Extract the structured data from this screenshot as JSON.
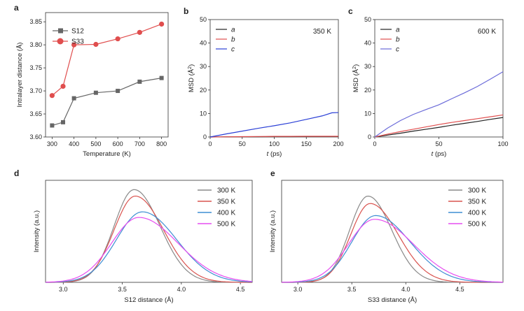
{
  "panel_labels": [
    "a",
    "b",
    "c",
    "d",
    "e"
  ],
  "chart_data": [
    {
      "panel": "a",
      "type": "line",
      "xlabel": "Temperature (K)",
      "ylabel": "Intralayer distance (Å)",
      "xlim": [
        270,
        830
      ],
      "ylim": [
        3.6,
        3.87
      ],
      "xticks": [
        300,
        400,
        500,
        600,
        700,
        800
      ],
      "yticks": [
        3.6,
        3.65,
        3.7,
        3.75,
        3.8,
        3.85
      ],
      "yticklabels": [
        "3.60",
        "3.65",
        "3.70",
        "3.75",
        "3.80",
        "3.85"
      ],
      "legend_position": "top-left",
      "x": [
        300,
        350,
        400,
        500,
        600,
        700,
        800
      ],
      "series": [
        {
          "name": "S12",
          "color": "#666666",
          "marker": "square",
          "values": [
            3.625,
            3.632,
            3.684,
            3.696,
            3.7,
            3.72,
            3.728
          ]
        },
        {
          "name": "S33",
          "color": "#e04e4e",
          "marker": "circle",
          "values": [
            3.69,
            3.71,
            3.8,
            3.801,
            3.813,
            3.827,
            3.845
          ]
        }
      ]
    },
    {
      "panel": "b",
      "type": "line",
      "xlabel": "t (ps)",
      "ylabel": "MSD (Å²)",
      "xlim": [
        0,
        200
      ],
      "ylim": [
        0,
        50
      ],
      "xticks": [
        0,
        50,
        100,
        150,
        200
      ],
      "yticks": [
        0,
        10,
        20,
        30,
        40,
        50
      ],
      "annotation": "350 K",
      "legend_position": "top-left",
      "x": [
        0,
        25,
        50,
        75,
        100,
        125,
        150,
        175,
        190,
        200
      ],
      "series": [
        {
          "name": "a",
          "color": "#222222",
          "values": [
            0,
            0.05,
            0.1,
            0.1,
            0.15,
            0.15,
            0.2,
            0.2,
            0.2,
            0.2
          ]
        },
        {
          "name": "b",
          "color": "#e04e4e",
          "values": [
            0,
            0.1,
            0.15,
            0.2,
            0.25,
            0.25,
            0.3,
            0.3,
            0.3,
            0.3
          ]
        },
        {
          "name": "c",
          "color": "#2a3fd6",
          "values": [
            0,
            1.3,
            2.5,
            3.7,
            4.8,
            6.0,
            7.5,
            9.0,
            10.3,
            10.4
          ]
        }
      ]
    },
    {
      "panel": "c",
      "type": "line",
      "xlabel": "t (ps)",
      "ylabel": "MSD (Å²)",
      "xlim": [
        0,
        100
      ],
      "ylim": [
        0,
        50
      ],
      "xticks": [
        0,
        50,
        100
      ],
      "yticks": [
        0,
        10,
        20,
        30,
        40,
        50
      ],
      "annotation": "600 K",
      "legend_position": "top-left",
      "x": [
        0,
        10,
        20,
        30,
        40,
        50,
        60,
        70,
        80,
        90,
        100
      ],
      "series": [
        {
          "name": "a",
          "color": "#222222",
          "values": [
            0,
            0.8,
            1.6,
            2.5,
            3.3,
            4.1,
            5.0,
            5.8,
            6.6,
            7.5,
            8.3
          ]
        },
        {
          "name": "b",
          "color": "#e04e4e",
          "values": [
            0,
            1.2,
            2.3,
            3.3,
            4.3,
            5.3,
            6.2,
            7.0,
            7.8,
            8.6,
            9.4
          ]
        },
        {
          "name": "c",
          "color": "#6b6bd9",
          "values": [
            0,
            3.8,
            7.0,
            9.6,
            11.7,
            13.7,
            16.3,
            18.8,
            21.5,
            24.6,
            27.8
          ]
        }
      ]
    },
    {
      "panel": "d",
      "type": "line",
      "xlabel": "S12 distance (Å)",
      "ylabel": "Intensity (a.u.)",
      "xlim": [
        2.85,
        4.6
      ],
      "ylim": [
        0,
        1.1
      ],
      "xticks": [
        3.0,
        3.5,
        4.0,
        4.5
      ],
      "xticklabels": [
        "3.0",
        "3.5",
        "4.0",
        "4.5"
      ],
      "legend_position": "top-right",
      "series": [
        {
          "name": "300 K",
          "color": "#8a8a8a",
          "mu": 3.6,
          "peak": 1.0,
          "sl": 0.17,
          "sr": 0.22
        },
        {
          "name": "350 K",
          "color": "#d9534f",
          "mu": 3.61,
          "peak": 0.93,
          "sl": 0.18,
          "sr": 0.24
        },
        {
          "name": "400 K",
          "color": "#3f8ed3",
          "mu": 3.67,
          "peak": 0.76,
          "sl": 0.22,
          "sr": 0.29
        },
        {
          "name": "500 K",
          "color": "#e64df0",
          "mu": 3.64,
          "peak": 0.7,
          "sl": 0.23,
          "sr": 0.33
        }
      ]
    },
    {
      "panel": "e",
      "type": "line",
      "xlabel": "S33 distance (Å)",
      "ylabel": "Intensity (a.u.)",
      "xlim": [
        2.85,
        4.9
      ],
      "ylim": [
        0,
        1.1
      ],
      "xticks": [
        3.0,
        3.5,
        4.0,
        4.5
      ],
      "xticklabels": [
        "3.0",
        "3.5",
        "4.0",
        "4.5"
      ],
      "legend_position": "top-right",
      "series": [
        {
          "name": "300 K",
          "color": "#8a8a8a",
          "mu": 3.65,
          "peak": 0.93,
          "sl": 0.17,
          "sr": 0.22
        },
        {
          "name": "350 K",
          "color": "#d9534f",
          "mu": 3.67,
          "peak": 0.85,
          "sl": 0.18,
          "sr": 0.26
        },
        {
          "name": "400 K",
          "color": "#3f8ed3",
          "mu": 3.72,
          "peak": 0.72,
          "sl": 0.22,
          "sr": 0.32
        },
        {
          "name": "500 K",
          "color": "#e64df0",
          "mu": 3.71,
          "peak": 0.68,
          "sl": 0.24,
          "sr": 0.36
        }
      ]
    }
  ]
}
